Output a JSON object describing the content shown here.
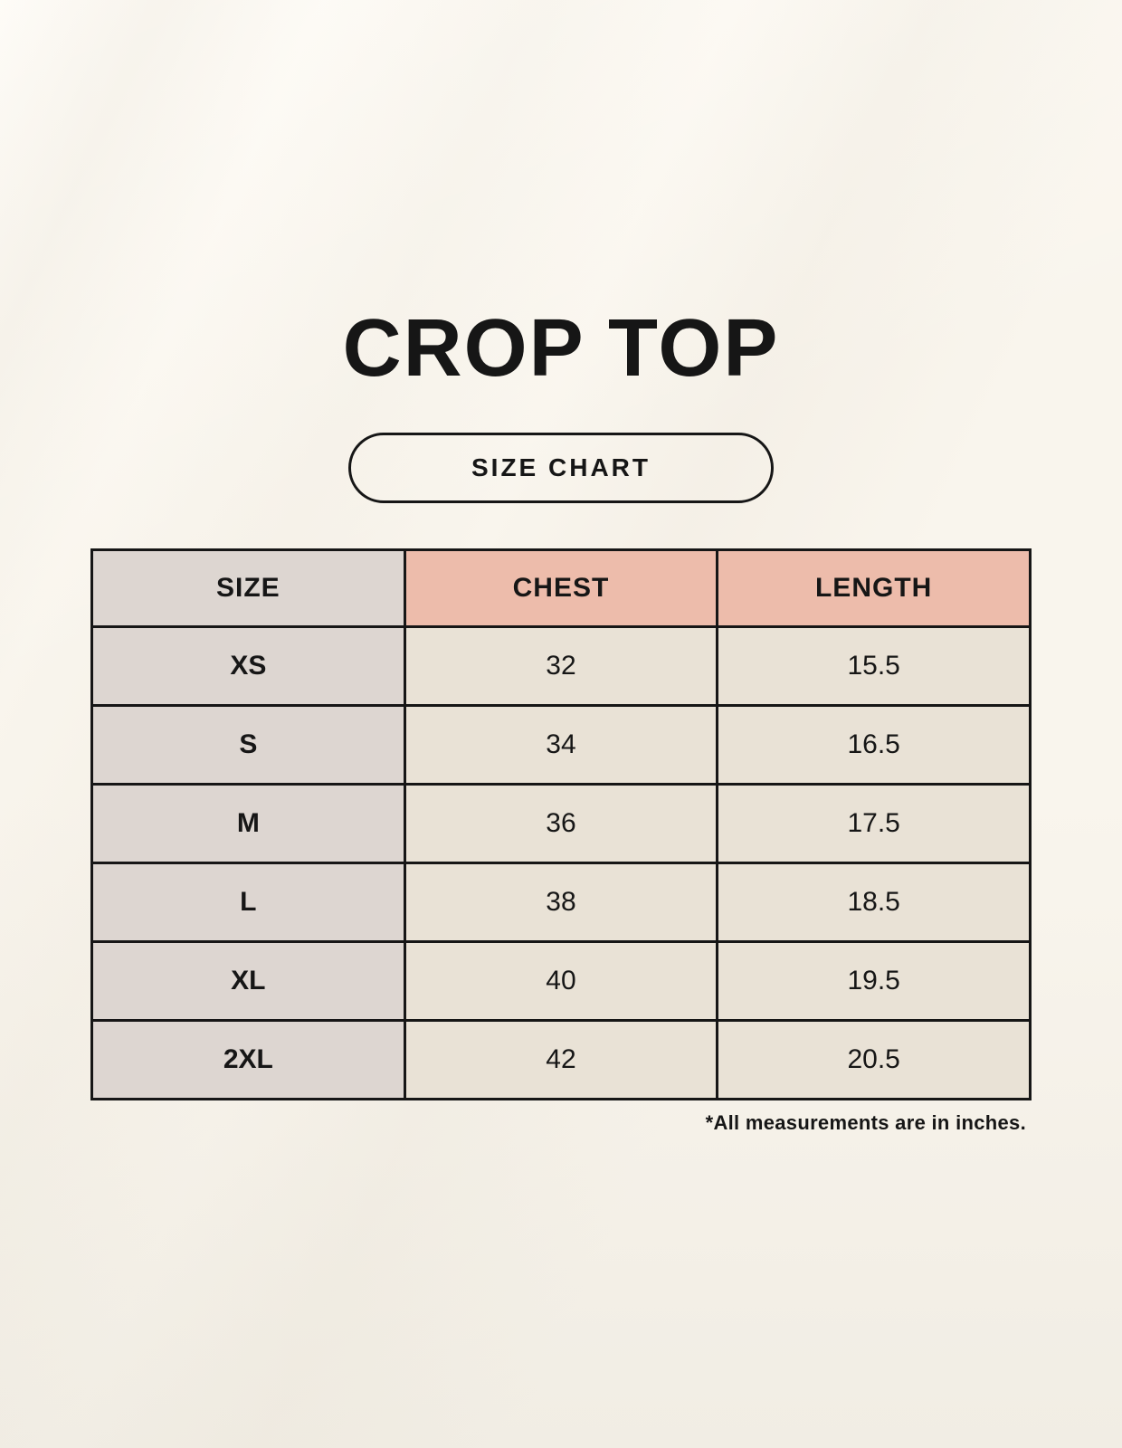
{
  "chart_data": {
    "type": "table",
    "title": "CROP TOP",
    "subtitle": "SIZE CHART",
    "columns": [
      "SIZE",
      "CHEST",
      "LENGTH"
    ],
    "rows": [
      [
        "XS",
        "32",
        "15.5"
      ],
      [
        "S",
        "34",
        "16.5"
      ],
      [
        "M",
        "36",
        "17.5"
      ],
      [
        "L",
        "38",
        "18.5"
      ],
      [
        "XL",
        "40",
        "19.5"
      ],
      [
        "2XL",
        "42",
        "20.5"
      ]
    ],
    "footnote": "*All measurements are in inches.",
    "units": "inches",
    "legend_position": "none",
    "grid": true
  },
  "colors": {
    "background_cream": "#f9f5ed",
    "background_cream_dark": "#f1ede4",
    "header_pink": "#edbcab",
    "size_column_gray": "#ddd6d1",
    "cell_cream": "#e9e2d6",
    "border_black": "#161616",
    "text_black": "#161616"
  }
}
